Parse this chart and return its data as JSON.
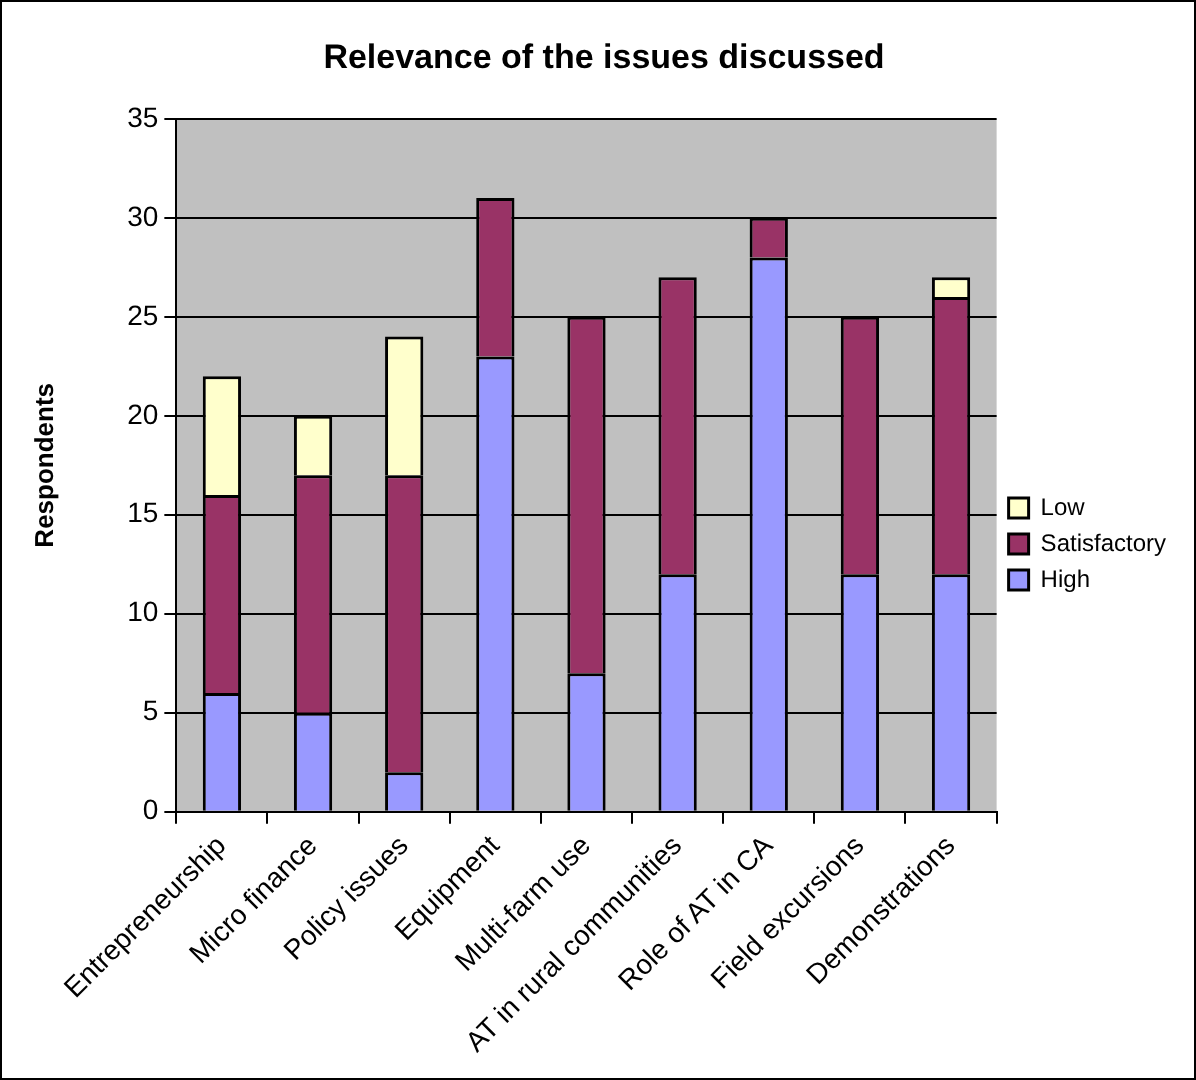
{
  "chart_data": {
    "type": "bar",
    "title": "Relevance of the issues discussed",
    "ylabel": "Respondents",
    "categories": [
      "Entrepreneurship",
      "Micro finance",
      "Policy issues",
      "Equipment",
      "Multi-farm use",
      "AT in rural communities",
      "Role of AT in CA",
      "Field excursions",
      "Demonstrations"
    ],
    "series": [
      {
        "name": "High",
        "color": "#9999ff",
        "values": [
          6,
          5,
          2,
          23,
          7,
          12,
          28,
          12,
          12
        ]
      },
      {
        "name": "Satisfactory",
        "color": "#993366",
        "values": [
          10,
          12,
          15,
          8,
          18,
          15,
          2,
          13,
          14
        ]
      },
      {
        "name": "Low",
        "color": "#ffffcc",
        "values": [
          6,
          3,
          7,
          null,
          null,
          null,
          null,
          null,
          1
        ]
      }
    ],
    "stacked": true,
    "ylim": [
      0,
      35
    ],
    "yticks": [
      0,
      5,
      10,
      15,
      20,
      25,
      30,
      35
    ],
    "grid": "y",
    "legend": "right"
  }
}
